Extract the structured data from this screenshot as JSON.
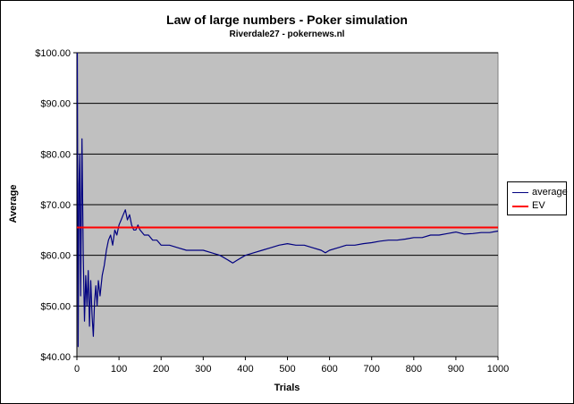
{
  "chart_data": {
    "type": "line",
    "title": "Law of large numbers - Poker simulation",
    "subtitle": "Riverdale27 - pokernews.nl",
    "xlabel": "Trials",
    "ylabel": "Average",
    "xlim": [
      0,
      1000
    ],
    "ylim": [
      40,
      100
    ],
    "x_ticks": [
      0,
      100,
      200,
      300,
      400,
      500,
      600,
      700,
      800,
      900,
      1000
    ],
    "y_ticks": [
      40,
      50,
      60,
      70,
      80,
      90,
      100
    ],
    "y_tick_labels": [
      "$40.00",
      "$50.00",
      "$60.00",
      "$70.00",
      "$80.00",
      "$90.00",
      "$100.00"
    ],
    "grid": "horizontal",
    "legend_position": "right",
    "plot_background": "#c0c0c0",
    "series": [
      {
        "name": "average",
        "color": "#000080",
        "x": [
          1,
          3,
          5,
          7,
          9,
          12,
          15,
          18,
          21,
          24,
          27,
          30,
          33,
          36,
          39,
          42,
          45,
          48,
          51,
          55,
          60,
          65,
          70,
          75,
          80,
          85,
          90,
          95,
          100,
          105,
          110,
          115,
          120,
          125,
          130,
          135,
          140,
          145,
          150,
          160,
          170,
          180,
          190,
          200,
          220,
          240,
          260,
          280,
          300,
          320,
          340,
          360,
          370,
          380,
          400,
          420,
          440,
          460,
          480,
          500,
          520,
          540,
          560,
          580,
          590,
          600,
          620,
          640,
          660,
          680,
          700,
          720,
          740,
          760,
          780,
          800,
          820,
          840,
          860,
          880,
          900,
          920,
          940,
          960,
          980,
          1000
        ],
        "values": [
          100,
          42,
          74,
          80,
          52,
          83,
          60,
          47,
          56,
          50,
          57,
          46,
          55,
          48,
          44,
          51,
          54,
          50,
          55,
          52,
          56,
          58,
          61,
          63,
          64,
          62,
          65,
          64,
          66,
          67,
          68,
          69,
          67,
          68,
          66,
          65,
          65,
          66,
          65,
          64,
          64,
          63,
          63,
          62,
          62,
          61.5,
          61,
          61,
          61,
          60.5,
          60,
          59,
          58.5,
          59,
          60,
          60.5,
          61,
          61.5,
          62,
          62.3,
          62,
          62,
          61.5,
          61,
          60.5,
          61,
          61.5,
          62,
          62,
          62.3,
          62.5,
          62.8,
          63,
          63,
          63.2,
          63.5,
          63.5,
          64,
          64,
          64.3,
          64.6,
          64.2,
          64.3,
          64.5,
          64.5,
          64.8
        ]
      },
      {
        "name": "EV",
        "color": "#ff0000",
        "x": [
          0,
          1000
        ],
        "values": [
          65.5,
          65.5
        ]
      }
    ]
  }
}
